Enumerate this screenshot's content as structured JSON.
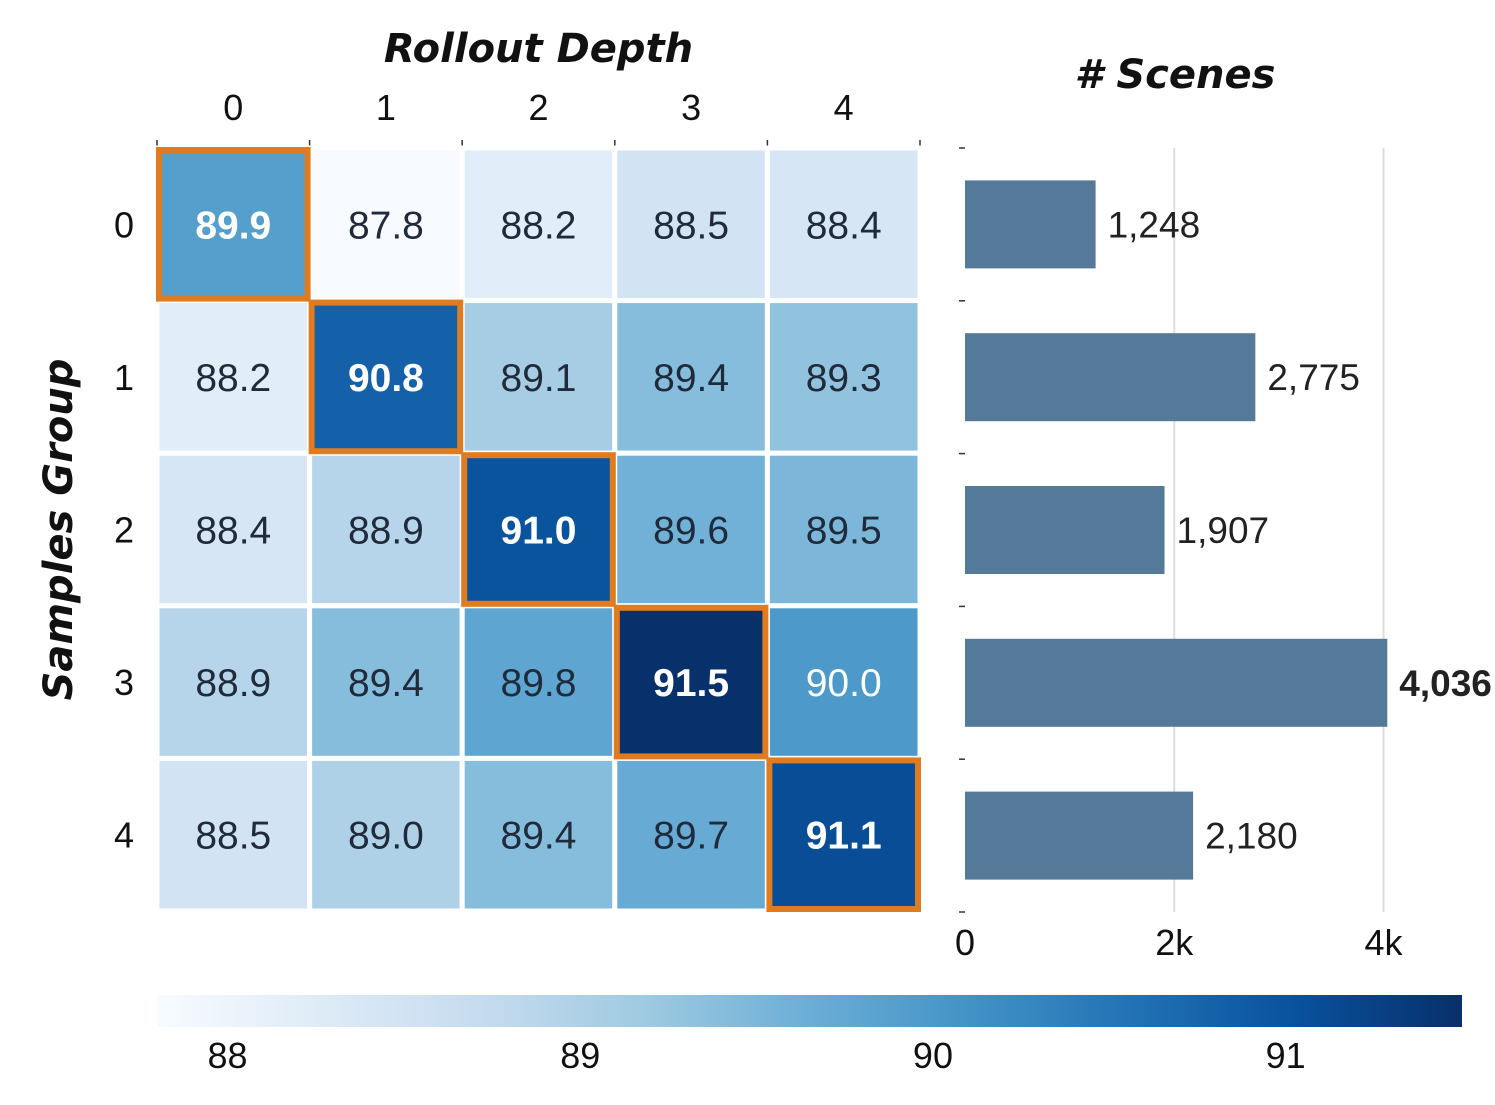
{
  "chart_data": [
    {
      "type": "heatmap",
      "title": "",
      "xlabel": "Rollout Depth",
      "ylabel": "Samples Group",
      "x_categories": [
        "0",
        "1",
        "2",
        "3",
        "4"
      ],
      "y_categories": [
        "0",
        "1",
        "2",
        "3",
        "4"
      ],
      "values": [
        [
          89.9,
          87.8,
          88.2,
          88.5,
          88.4
        ],
        [
          88.2,
          90.8,
          89.1,
          89.4,
          89.3
        ],
        [
          88.4,
          88.9,
          91.0,
          89.6,
          89.5
        ],
        [
          88.9,
          89.4,
          89.8,
          91.5,
          90.0
        ],
        [
          88.5,
          89.0,
          89.4,
          89.7,
          91.1
        ]
      ],
      "cell_labels": [
        [
          "89.9",
          "87.8",
          "88.2",
          "88.5",
          "88.4"
        ],
        [
          "88.2",
          "90.8",
          "89.1",
          "89.4",
          "89.3"
        ],
        [
          "88.4",
          "88.9",
          "91.0",
          "89.6",
          "89.5"
        ],
        [
          "88.9",
          "89.4",
          "89.8",
          "91.5",
          "90.0"
        ],
        [
          "88.5",
          "89.0",
          "89.4",
          "89.7",
          "91.1"
        ]
      ],
      "highlight": "diagonal",
      "highlight_color": "#e07b1f",
      "colorbar": {
        "ticks": [
          "88",
          "89",
          "90",
          "91"
        ],
        "tick_values": [
          88,
          89,
          90,
          91
        ],
        "range": [
          87.8,
          91.5
        ],
        "colors": [
          "#f7fbff",
          "#deebf7",
          "#c6dbef",
          "#9ecae1",
          "#6baed6",
          "#4292c6",
          "#2171b5",
          "#08519c",
          "#08306b"
        ]
      }
    },
    {
      "type": "bar",
      "orientation": "horizontal",
      "title": "# Scenes",
      "categories": [
        "0",
        "1",
        "2",
        "3",
        "4"
      ],
      "values": [
        1248,
        2775,
        1907,
        4036,
        2180
      ],
      "value_labels": [
        "1,248",
        "2,775",
        "1,907",
        "4,036",
        "2,180"
      ],
      "max_label_bold": true,
      "xlim": [
        0,
        5400
      ],
      "x_ticks": [
        0,
        2000,
        4000
      ],
      "x_tick_labels": [
        "0",
        "2k",
        "4k"
      ],
      "bar_color": "#557a99",
      "grid": true
    }
  ]
}
